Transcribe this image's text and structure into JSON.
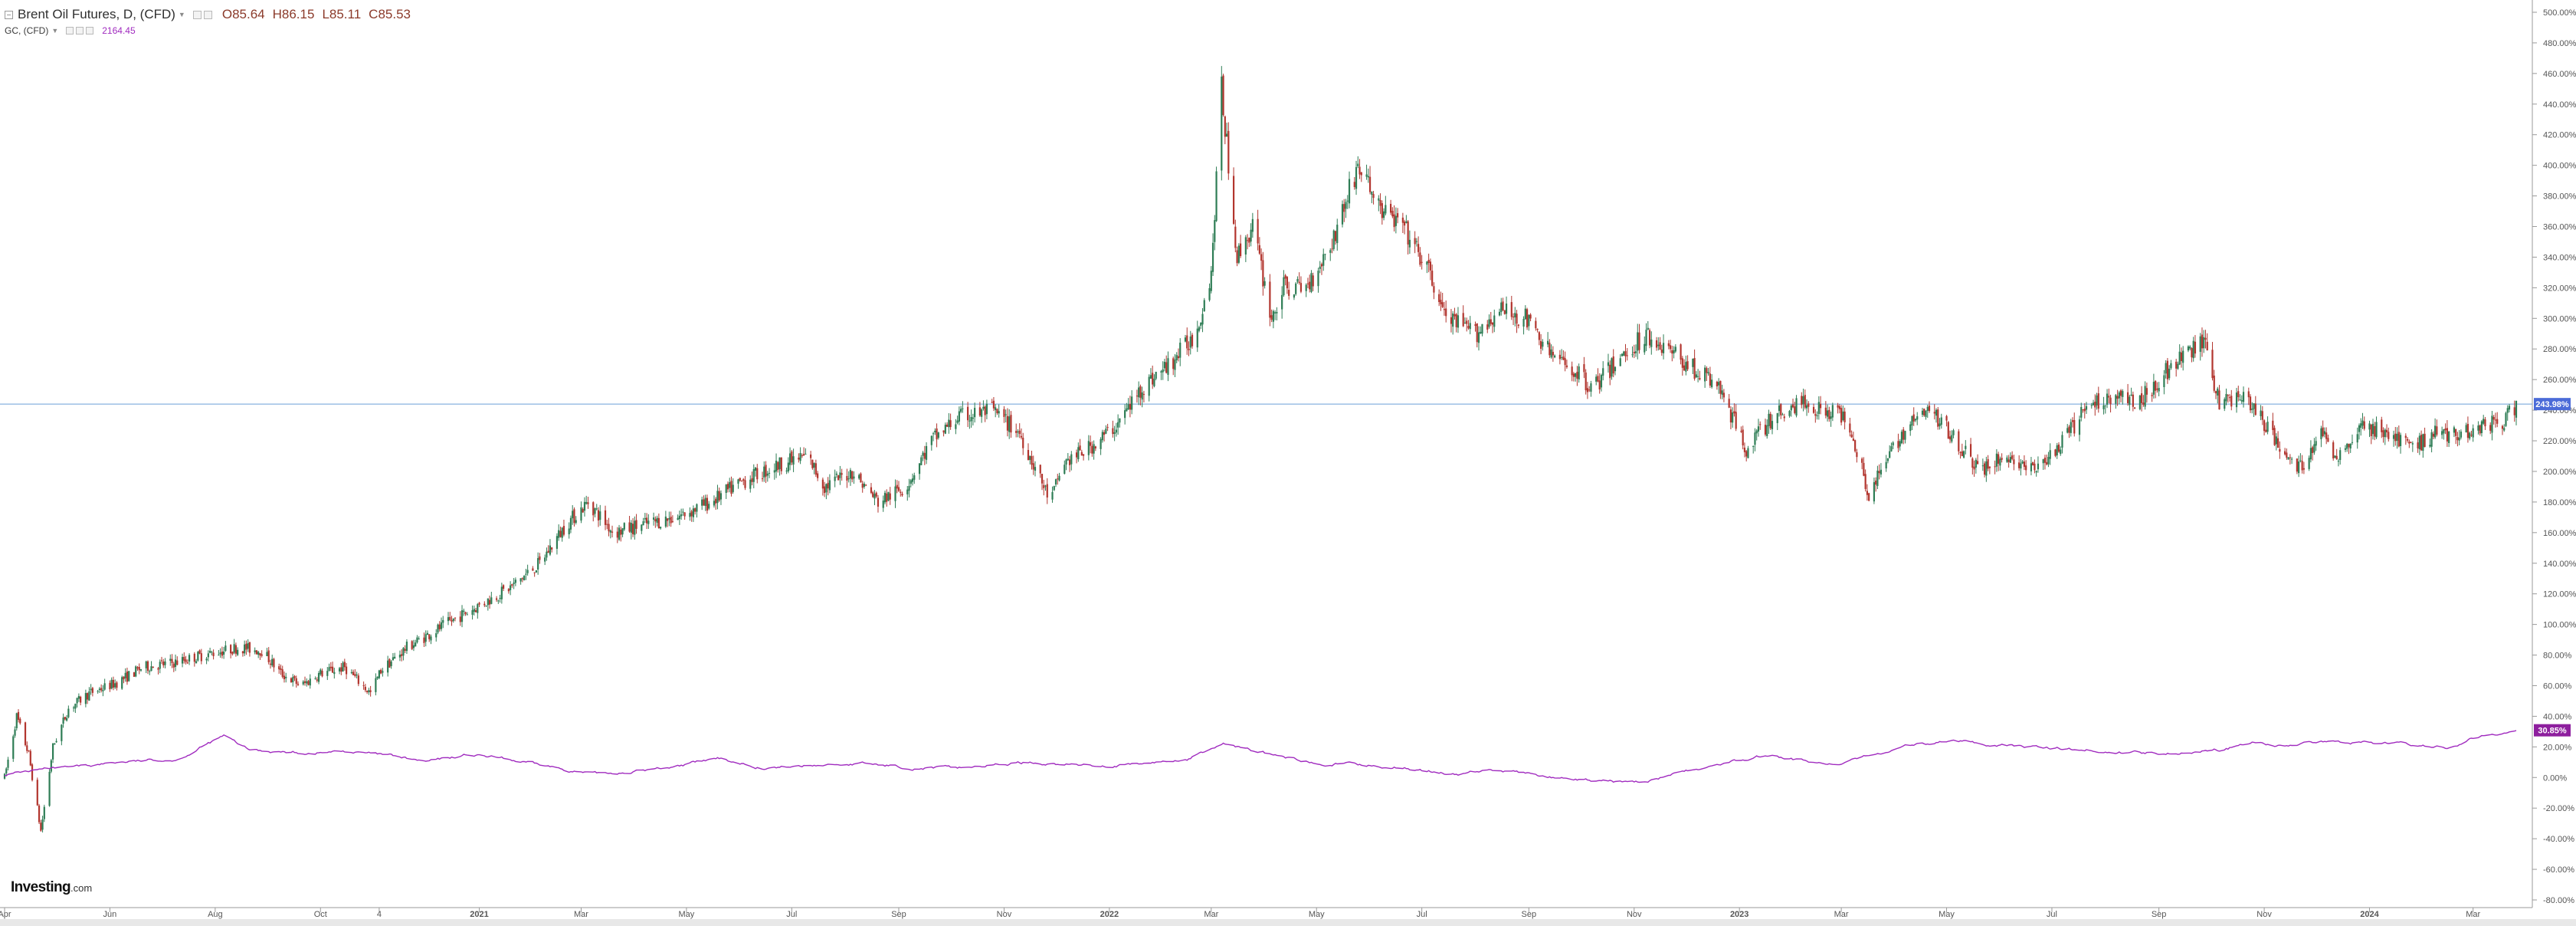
{
  "header": {
    "title": "Brent Oil Futures, D, (CFD)",
    "open": "O85.64",
    "high": "H86.15",
    "low": "L85.11",
    "close": "C85.53"
  },
  "subseries": {
    "title": "GC, (CFD)",
    "value": "2164.45"
  },
  "brand": {
    "logo_main": "Investing",
    "logo_suffix": ".com"
  },
  "colors": {
    "up_candle": "#2e7d55",
    "down_candle": "#b2352e",
    "overlay_line": "#a02bbf",
    "horizontal_line": "#6a9fd8",
    "last_price_badge": "#4b6bd8",
    "overlay_badge": "#8e1f9e"
  },
  "chart_data": {
    "type": "line",
    "scale": "percent change",
    "ylim": [
      -80,
      500
    ],
    "y_tick_labels": [
      "-80.00%",
      "-60.00%",
      "-40.00%",
      "-20.00%",
      "0.00%",
      "20.00%",
      "40.00%",
      "60.00%",
      "80.00%",
      "100.00%",
      "120.00%",
      "140.00%",
      "160.00%",
      "180.00%",
      "200.00%",
      "220.00%",
      "240.00%",
      "260.00%",
      "280.00%",
      "300.00%",
      "320.00%",
      "340.00%",
      "360.00%",
      "380.00%",
      "400.00%",
      "420.00%",
      "440.00%",
      "460.00%",
      "480.00%",
      "500.00%"
    ],
    "x_tick_labels": [
      "Apr",
      "Jun",
      "Aug",
      "Oct",
      "4",
      "2021",
      "Mar",
      "May",
      "Jul",
      "Sep",
      "Nov",
      "2022",
      "Mar",
      "May",
      "Jul",
      "Sep",
      "Nov",
      "2023",
      "Mar",
      "May",
      "Jul",
      "Sep",
      "Nov",
      "2024",
      "Mar"
    ],
    "xlim": [
      "2020-04-01",
      "2024-03-26"
    ],
    "horizontal_line": 243.98,
    "last_value_badges": [
      "243.98%",
      "30.85%"
    ],
    "grid": false,
    "series": [
      {
        "name": "Brent Oil Futures, D, (CFD)",
        "style": "candlestick",
        "x": [
          "2020-04-01",
          "2020-04-08",
          "2020-04-15",
          "2020-04-22",
          "2020-04-29",
          "2020-05-08",
          "2020-05-20",
          "2020-06-05",
          "2020-06-20",
          "2020-07-08",
          "2020-07-25",
          "2020-08-15",
          "2020-08-28",
          "2020-09-08",
          "2020-09-20",
          "2020-10-01",
          "2020-10-15",
          "2020-10-30",
          "2020-11-05",
          "2020-11-20",
          "2020-12-05",
          "2020-12-20",
          "2021-01-05",
          "2021-01-20",
          "2021-02-05",
          "2021-02-20",
          "2021-03-05",
          "2021-03-20",
          "2021-04-05",
          "2021-04-25",
          "2021-05-15",
          "2021-06-05",
          "2021-06-25",
          "2021-07-10",
          "2021-07-20",
          "2021-08-05",
          "2021-08-20",
          "2021-09-05",
          "2021-09-20",
          "2021-10-05",
          "2021-10-25",
          "2021-11-10",
          "2021-11-28",
          "2021-12-05",
          "2021-12-20",
          "2022-01-05",
          "2022-01-20",
          "2022-02-05",
          "2022-02-20",
          "2022-03-01",
          "2022-03-07",
          "2022-03-16",
          "2022-03-25",
          "2022-04-05",
          "2022-04-12",
          "2022-04-25",
          "2022-05-10",
          "2022-05-25",
          "2022-06-08",
          "2022-06-20",
          "2022-07-05",
          "2022-07-15",
          "2022-08-01",
          "2022-08-15",
          "2022-08-30",
          "2022-09-15",
          "2022-09-28",
          "2022-10-08",
          "2022-10-25",
          "2022-11-08",
          "2022-11-20",
          "2022-12-08",
          "2022-12-20",
          "2023-01-05",
          "2023-01-20",
          "2023-02-05",
          "2023-02-20",
          "2023-03-05",
          "2023-03-17",
          "2023-04-05",
          "2023-04-20",
          "2023-05-04",
          "2023-05-20",
          "2023-06-05",
          "2023-06-20",
          "2023-07-05",
          "2023-07-20",
          "2023-08-05",
          "2023-08-20",
          "2023-09-05",
          "2023-09-27",
          "2023-10-06",
          "2023-10-20",
          "2023-11-05",
          "2023-11-20",
          "2023-12-05",
          "2023-12-13",
          "2023-12-28",
          "2024-01-10",
          "2024-01-25",
          "2024-02-08",
          "2024-02-22",
          "2024-03-05",
          "2024-03-18",
          "2024-03-26"
        ],
        "values": [
          0,
          40,
          15,
          -35,
          20,
          45,
          55,
          62,
          72,
          75,
          80,
          85,
          83,
          68,
          60,
          68,
          72,
          55,
          70,
          85,
          95,
          105,
          115,
          125,
          140,
          165,
          180,
          160,
          165,
          170,
          180,
          195,
          205,
          210,
          190,
          200,
          180,
          190,
          220,
          235,
          240,
          225,
          180,
          205,
          215,
          230,
          255,
          270,
          290,
          330,
          450,
          340,
          360,
          300,
          320,
          320,
          350,
          400,
          370,
          360,
          330,
          300,
          290,
          305,
          300,
          275,
          265,
          255,
          275,
          290,
          280,
          265,
          255,
          215,
          235,
          245,
          240,
          235,
          185,
          225,
          240,
          225,
          200,
          210,
          200,
          215,
          240,
          250,
          245,
          265,
          285,
          245,
          250,
          225,
          200,
          225,
          210,
          230,
          225,
          215,
          225,
          225,
          230,
          232,
          244
        ]
      },
      {
        "name": "GC, (CFD)",
        "style": "line",
        "x": [
          "2020-04-01",
          "2020-04-20",
          "2020-05-10",
          "2020-06-05",
          "2020-07-10",
          "2020-08-06",
          "2020-08-20",
          "2020-09-20",
          "2020-10-15",
          "2020-11-10",
          "2020-12-01",
          "2020-12-25",
          "2021-01-15",
          "2021-02-05",
          "2021-03-08",
          "2021-04-10",
          "2021-05-20",
          "2021-06-18",
          "2021-07-15",
          "2021-08-10",
          "2021-09-05",
          "2021-10-01",
          "2021-11-15",
          "2021-12-15",
          "2022-01-15",
          "2022-02-15",
          "2022-03-08",
          "2022-04-15",
          "2022-05-15",
          "2022-06-15",
          "2022-07-20",
          "2022-08-15",
          "2022-09-26",
          "2022-10-20",
          "2022-11-03",
          "2022-12-10",
          "2023-01-15",
          "2023-02-27",
          "2023-04-05",
          "2023-05-04",
          "2023-06-20",
          "2023-07-20",
          "2023-08-20",
          "2023-10-05",
          "2023-10-27",
          "2023-11-20",
          "2023-12-04",
          "2024-01-15",
          "2024-02-14",
          "2024-03-08",
          "2024-03-26"
        ],
        "values": [
          2,
          5,
          6,
          10,
          12,
          27,
          18,
          16,
          17,
          14,
          10,
          15,
          12,
          8,
          2,
          5,
          12,
          6,
          8,
          9,
          7,
          6,
          10,
          8,
          8,
          12,
          22,
          12,
          9,
          7,
          2,
          5,
          -2,
          -3,
          -3,
          6,
          14,
          8,
          20,
          24,
          20,
          18,
          16,
          18,
          23,
          20,
          24,
          22,
          20,
          28,
          31
        ]
      }
    ]
  }
}
